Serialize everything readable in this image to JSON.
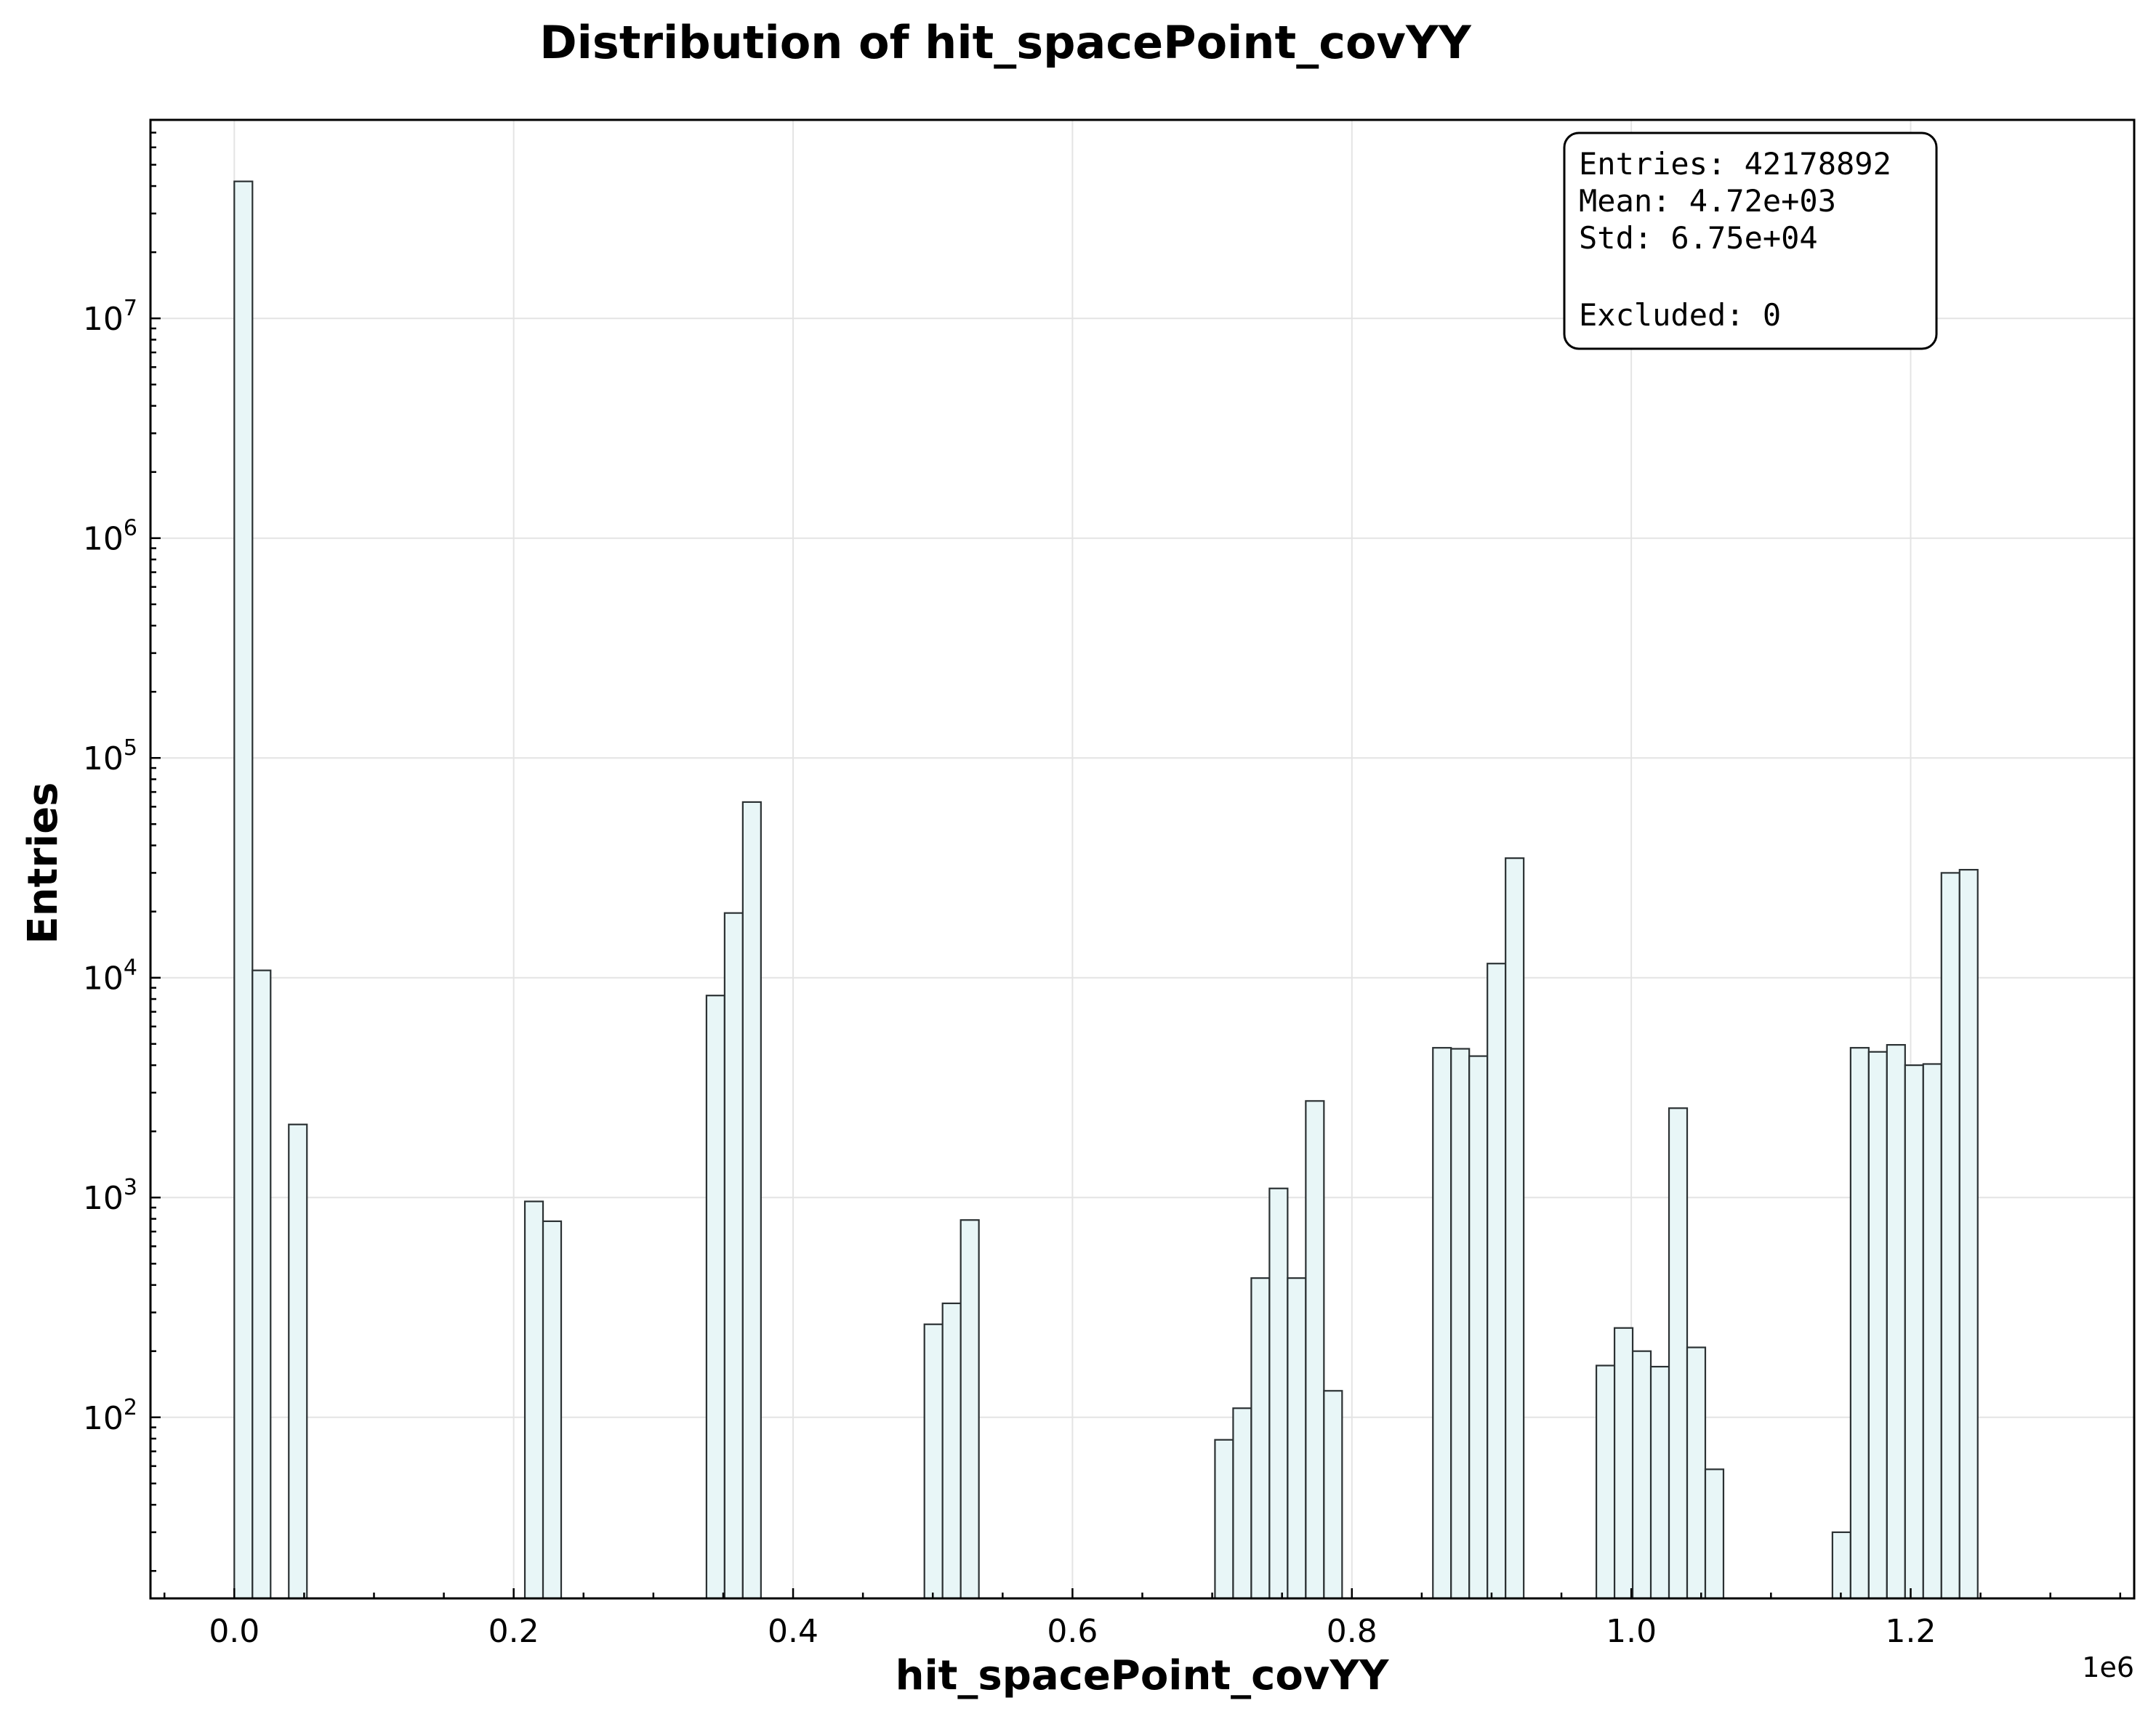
{
  "chart_data": {
    "type": "bar",
    "subtype": "histogram",
    "title": "Distribution of hit_spacePoint_covYY",
    "xlabel": "hit_spacePoint_covYY",
    "ylabel": "Entries",
    "x_offset_label": "1e6",
    "x_scale": "linear",
    "y_scale": "log",
    "xlim": [
      -60000,
      1360000
    ],
    "ylim": [
      15,
      80000000
    ],
    "x_ticks": [
      0,
      200000,
      400000,
      600000,
      800000,
      1000000,
      1200000
    ],
    "x_tick_labels": [
      "0.0",
      "0.2",
      "0.4",
      "0.6",
      "0.8",
      "1.0",
      "1.2"
    ],
    "y_ticks": [
      100,
      1000,
      10000,
      100000,
      1000000,
      10000000
    ],
    "y_tick_labels": [
      {
        "base": "10",
        "exp": "2"
      },
      {
        "base": "10",
        "exp": "3"
      },
      {
        "base": "10",
        "exp": "4"
      },
      {
        "base": "10",
        "exp": "5"
      },
      {
        "base": "10",
        "exp": "6"
      },
      {
        "base": "10",
        "exp": "7"
      }
    ],
    "grid": true,
    "bin_width": 13000,
    "bars": [
      {
        "x": 0,
        "y": 42000000
      },
      {
        "x": 13000,
        "y": 10800
      },
      {
        "x": 39000,
        "y": 2150
      },
      {
        "x": 208000,
        "y": 960
      },
      {
        "x": 221000,
        "y": 780
      },
      {
        "x": 338000,
        "y": 8300
      },
      {
        "x": 351000,
        "y": 19700
      },
      {
        "x": 364000,
        "y": 63000
      },
      {
        "x": 494000,
        "y": 265
      },
      {
        "x": 507000,
        "y": 330
      },
      {
        "x": 520000,
        "y": 790
      },
      {
        "x": 702000,
        "y": 79
      },
      {
        "x": 715000,
        "y": 110
      },
      {
        "x": 728000,
        "y": 430
      },
      {
        "x": 741000,
        "y": 1100
      },
      {
        "x": 754000,
        "y": 430
      },
      {
        "x": 767000,
        "y": 2750
      },
      {
        "x": 780000,
        "y": 132
      },
      {
        "x": 858000,
        "y": 4800
      },
      {
        "x": 871000,
        "y": 4750
      },
      {
        "x": 884000,
        "y": 4400
      },
      {
        "x": 897000,
        "y": 11600
      },
      {
        "x": 910000,
        "y": 35000
      },
      {
        "x": 975000,
        "y": 172
      },
      {
        "x": 988000,
        "y": 255
      },
      {
        "x": 1001000,
        "y": 200
      },
      {
        "x": 1014000,
        "y": 170
      },
      {
        "x": 1027000,
        "y": 2550
      },
      {
        "x": 1040000,
        "y": 208
      },
      {
        "x": 1053000,
        "y": 58
      },
      {
        "x": 1144000,
        "y": 30
      },
      {
        "x": 1157000,
        "y": 4800
      },
      {
        "x": 1170000,
        "y": 4600
      },
      {
        "x": 1183000,
        "y": 4950
      },
      {
        "x": 1196000,
        "y": 4000
      },
      {
        "x": 1209000,
        "y": 4050
      },
      {
        "x": 1222000,
        "y": 30000
      },
      {
        "x": 1235000,
        "y": 31000
      }
    ],
    "colors": {
      "bar_fill": "#e8f6f7",
      "bar_edge": "#2b3133"
    },
    "legend": "top-right",
    "stats_box": {
      "lines": [
        "Entries: 42178892",
        "Mean: 4.72e+03",
        "Std: 6.75e+04",
        "",
        "Excluded: 0"
      ]
    }
  }
}
